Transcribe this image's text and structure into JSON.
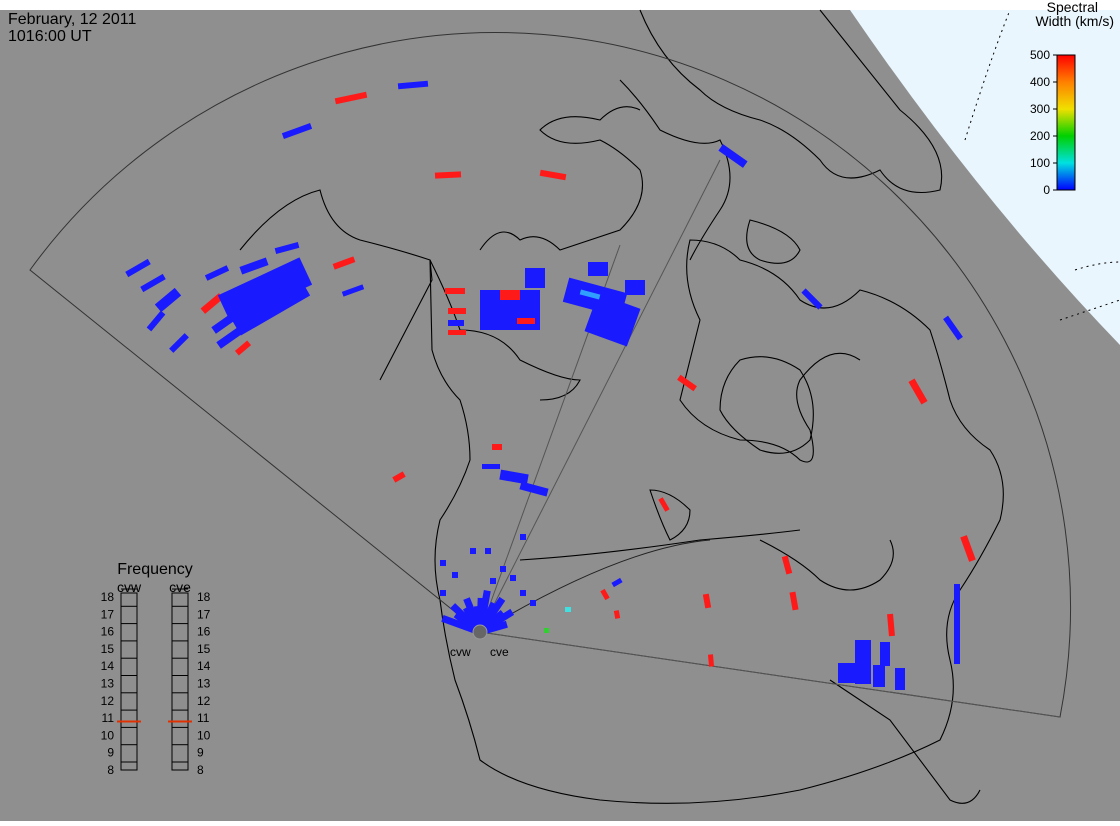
{
  "header": {
    "date": "February, 12 2011",
    "time": "1016:00 UT"
  },
  "colorbar": {
    "title": [
      "Spectral",
      "Width (km/s)"
    ],
    "range": [
      0,
      500
    ],
    "ticks": [
      0,
      100,
      200,
      300,
      400,
      500
    ],
    "colors": [
      "#0000ff",
      "#00e0e0",
      "#00d000",
      "#f0e000",
      "#ff8000",
      "#ff0000"
    ]
  },
  "frequency": {
    "title": "Frequency",
    "range": [
      8,
      18
    ],
    "ticks": [
      8,
      9,
      10,
      11,
      12,
      13,
      14,
      15,
      16,
      17,
      18
    ],
    "radars": [
      {
        "name": "cvw",
        "value": 10.8
      },
      {
        "name": "cve",
        "value": 10.8
      }
    ]
  },
  "sites": [
    "cvw",
    "cve"
  ]
}
